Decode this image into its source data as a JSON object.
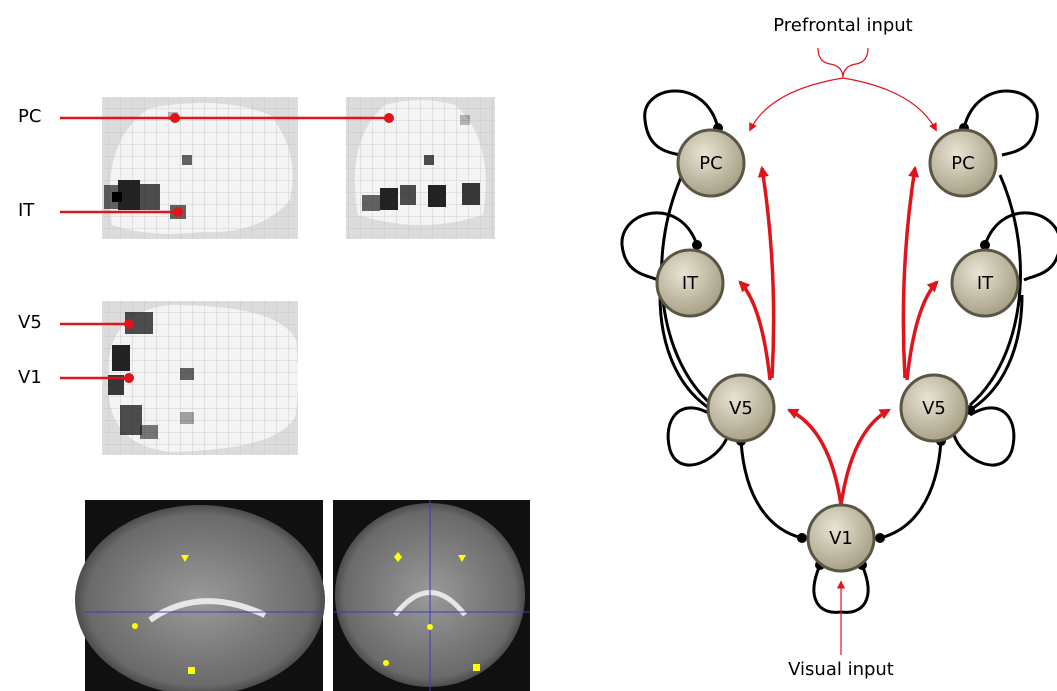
{
  "left_labels": [
    "PC",
    "IT",
    "V5",
    "V1"
  ],
  "nodes": [
    {
      "label": "PC"
    },
    {
      "label": "PC"
    },
    {
      "label": "IT"
    },
    {
      "label": "IT"
    },
    {
      "label": "V5"
    },
    {
      "label": "V5"
    },
    {
      "label": "V1"
    }
  ],
  "inputs": {
    "top": "Prefrontal input",
    "bottom": "Visual input"
  }
}
